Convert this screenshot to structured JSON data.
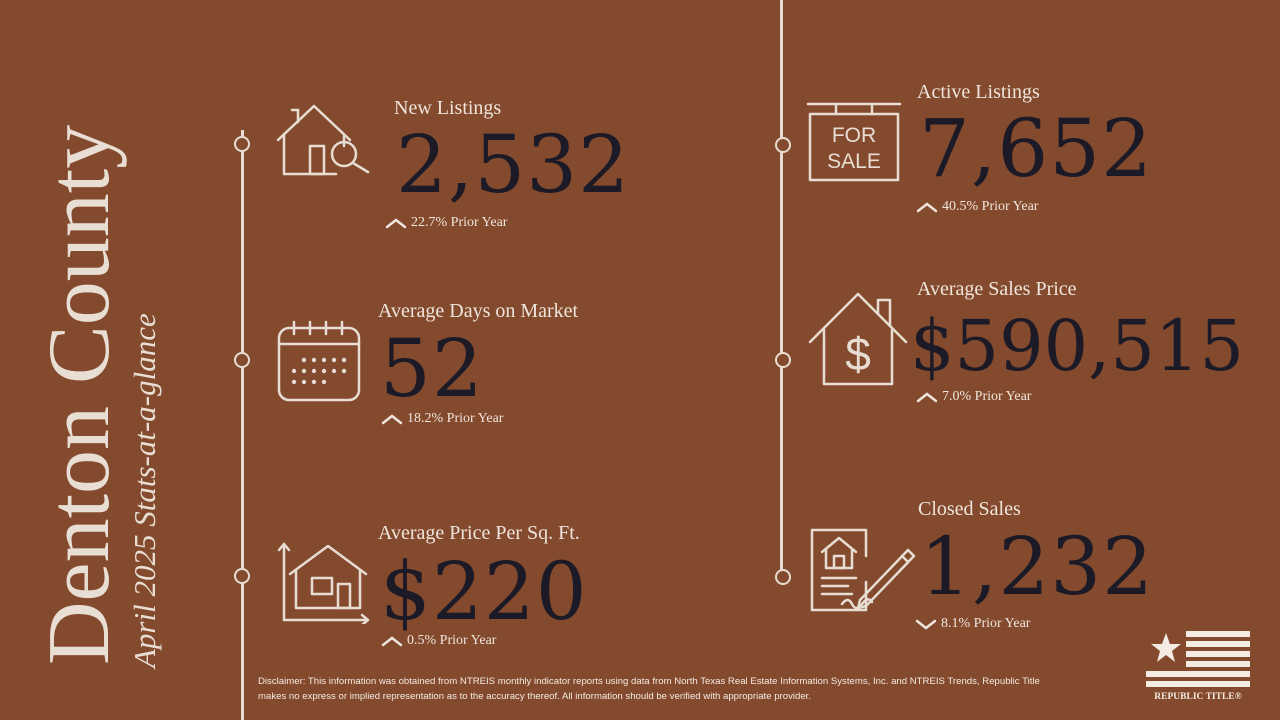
{
  "title": {
    "county": "Denton County",
    "subtitle": "April 2025 Stats-at-a-glance"
  },
  "colors": {
    "background": "#844a2e",
    "value_text": "#1c1a26",
    "light_text": "#efe5dc"
  },
  "stats": [
    {
      "label": "New Listings",
      "value": "2,532",
      "change": "22.7% Prior Year",
      "direction": "up",
      "icon": "house-search-icon"
    },
    {
      "label": "Average Days on Market",
      "value": "52",
      "change": "18.2% Prior Year",
      "direction": "up",
      "icon": "calendar-icon"
    },
    {
      "label": "Average Price Per Sq. Ft.",
      "value": "$220",
      "change": "0.5% Prior Year",
      "direction": "up",
      "icon": "house-chart-icon"
    },
    {
      "label": "Active Listings",
      "value": "7,652",
      "change": "40.5% Prior Year",
      "direction": "up",
      "icon": "for-sale-sign-icon",
      "sign_text": [
        "FOR",
        "SALE"
      ]
    },
    {
      "label": "Average Sales Price",
      "value": "$590,515",
      "change": "7.0% Prior Year",
      "direction": "up",
      "icon": "house-dollar-icon"
    },
    {
      "label": "Closed Sales",
      "value": "1,232",
      "change": "8.1% Prior Year",
      "direction": "down",
      "icon": "signed-contract-icon"
    }
  ],
  "disclaimer": "Disclaimer: This information was obtained from NTREIS monthly indicator reports using data from North Texas Real Estate Information Systems, Inc. and NTREIS Trends, Republic Title makes no express or implied representation as to the accuracy thereof. All information should be verified with appropriate provider.",
  "logo": {
    "text": "REPUBLIC TITLE®"
  }
}
